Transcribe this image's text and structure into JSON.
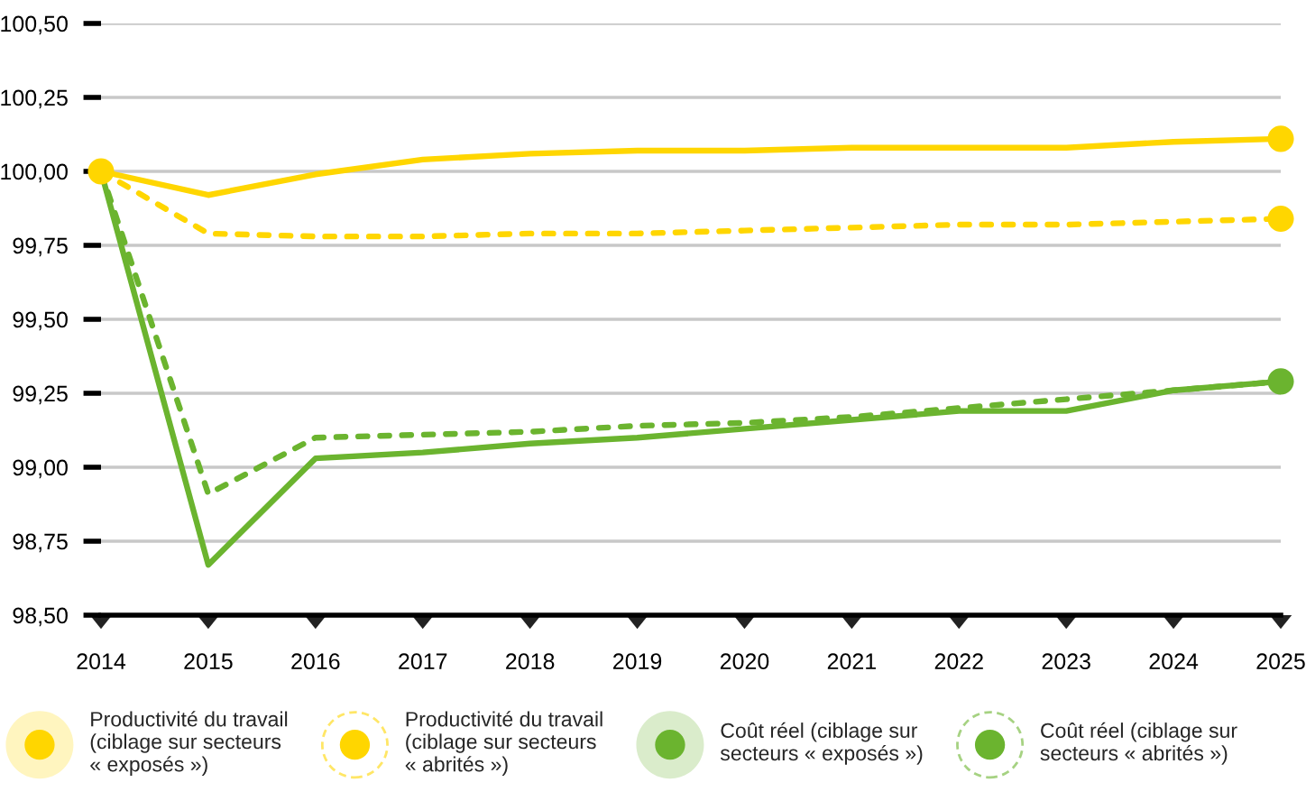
{
  "chart_data": {
    "type": "line",
    "x": [
      2014,
      2015,
      2016,
      2017,
      2018,
      2019,
      2020,
      2021,
      2022,
      2023,
      2024,
      2025
    ],
    "xlim": [
      2014,
      2025
    ],
    "xticks": [
      2014,
      2015,
      2016,
      2017,
      2018,
      2019,
      2020,
      2021,
      2022,
      2023,
      2024,
      2025
    ],
    "ylim": [
      98.5,
      100.5
    ],
    "yticks": [
      {
        "value": 98.5,
        "label": "98,50"
      },
      {
        "value": 98.75,
        "label": "98,75"
      },
      {
        "value": 99.0,
        "label": "99,00"
      },
      {
        "value": 99.25,
        "label": "99,25"
      },
      {
        "value": 99.5,
        "label": "99,50"
      },
      {
        "value": 99.75,
        "label": "99,75"
      },
      {
        "value": 100.0,
        "label": "100,00"
      },
      {
        "value": 100.25,
        "label": "100,25"
      },
      {
        "value": 100.5,
        "label": "100,50"
      }
    ],
    "grid": "y",
    "legend": "bottom",
    "series": [
      {
        "name": "Productivité du travail\n(ciblage sur secteurs\n« exposés »)",
        "color": "#ffd600",
        "line_style": "solid",
        "values": [
          100.0,
          99.92,
          99.99,
          100.04,
          100.06,
          100.07,
          100.07,
          100.08,
          100.08,
          100.08,
          100.1,
          100.11
        ]
      },
      {
        "name": "Productivité du travail\n(ciblage sur secteurs\n« abrités »)",
        "color": "#ffd600",
        "line_style": "dashed",
        "values": [
          100.0,
          99.79,
          99.78,
          99.78,
          99.79,
          99.79,
          99.8,
          99.81,
          99.82,
          99.82,
          99.83,
          99.84
        ]
      },
      {
        "name": "Coût réel (ciblage sur\nsecteurs « exposés »)",
        "color": "#6bb42f",
        "line_style": "solid",
        "values": [
          100.0,
          98.67,
          99.03,
          99.05,
          99.08,
          99.1,
          99.13,
          99.16,
          99.19,
          99.19,
          99.26,
          99.29
        ]
      },
      {
        "name": "Coût réel (ciblage sur\nsecteurs « abrités »)",
        "color": "#6bb42f",
        "line_style": "dashed",
        "values": [
          100.0,
          98.91,
          99.1,
          99.11,
          99.12,
          99.14,
          99.15,
          99.17,
          99.2,
          99.23,
          99.26,
          99.29
        ]
      },
      {
        "type": "scatter",
        "marker": "circle",
        "color": "#ffd600",
        "values": [
          100.0,
          null,
          null,
          null,
          null,
          null,
          null,
          null,
          null,
          null,
          null,
          100.11
        ]
      },
      {
        "type": "scatter",
        "marker": "circle",
        "color": "#ffd600",
        "values": [
          null,
          null,
          null,
          null,
          null,
          null,
          null,
          null,
          null,
          null,
          null,
          99.84
        ]
      },
      {
        "type": "scatter",
        "marker": "circle",
        "color": "#6bb42f",
        "values": [
          null,
          null,
          null,
          null,
          null,
          null,
          null,
          null,
          null,
          null,
          null,
          99.29
        ]
      }
    ]
  }
}
